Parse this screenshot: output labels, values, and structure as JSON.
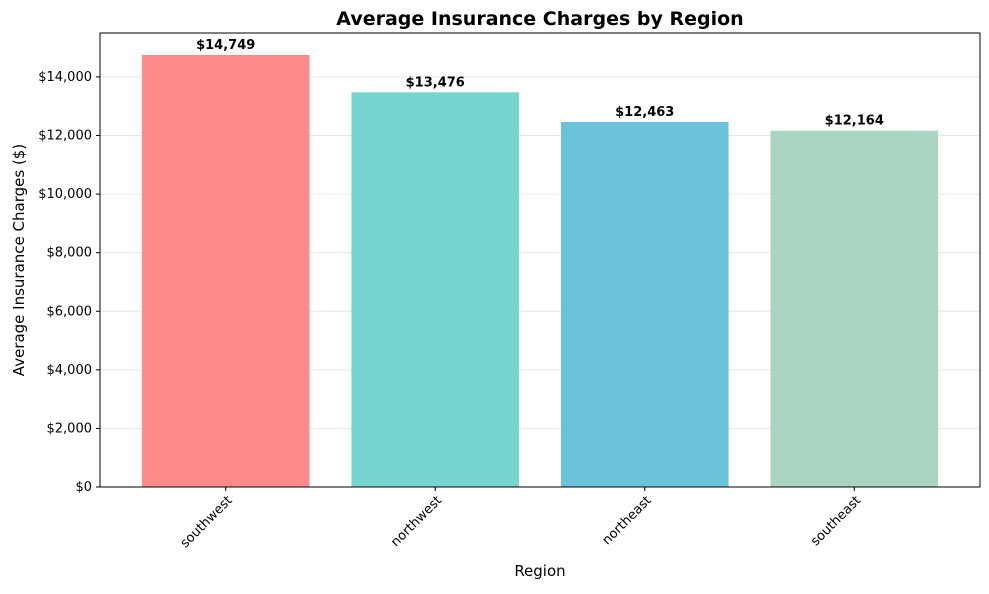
{
  "chart_data": {
    "type": "bar",
    "title": "Average Insurance Charges by Region",
    "xlabel": "Region",
    "ylabel": "Average Insurance Charges ($)",
    "categories": [
      "southwest",
      "northwest",
      "northeast",
      "southeast"
    ],
    "values": [
      14749,
      13476,
      12463,
      12164
    ],
    "value_labels": [
      "$14,749",
      "$13,476",
      "$12,463",
      "$12,164"
    ],
    "colors": [
      "#FF8A8A",
      "#74D6CF",
      "#6AC3D9",
      "#ABD5C3"
    ],
    "ylim": [
      0,
      15500
    ],
    "yticks": [
      0,
      2000,
      4000,
      6000,
      8000,
      10000,
      12000,
      14000
    ],
    "ytick_labels": [
      "$0",
      "$2,000",
      "$4,000",
      "$6,000",
      "$8,000",
      "$10,000",
      "$12,000",
      "$14,000"
    ],
    "grid": "y",
    "legend": "none"
  }
}
